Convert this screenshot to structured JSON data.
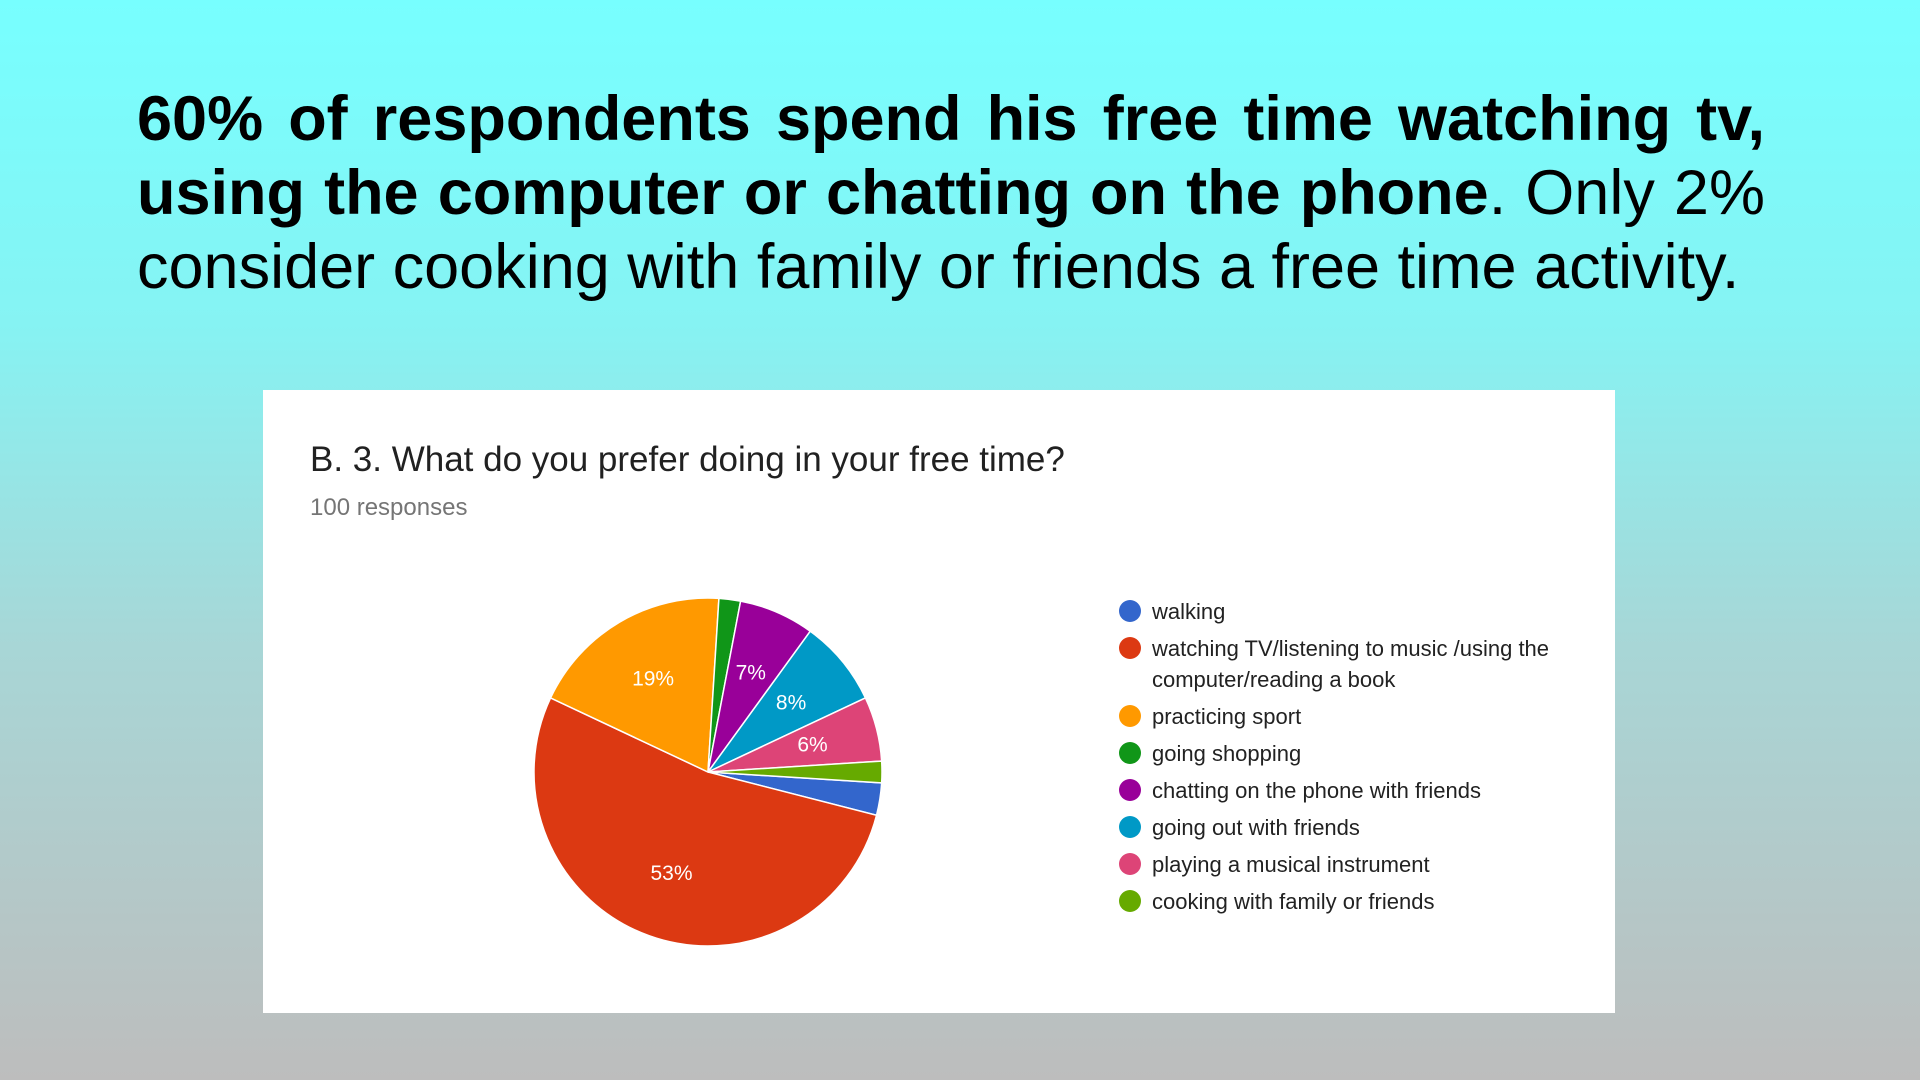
{
  "headline": {
    "bold_text": "60% of respondents spend his free time watching tv, using the computer or chatting on the phone",
    "rest_text": ". Only 2% consider cooking with family or friends a free time activity."
  },
  "chart_data": {
    "type": "pie",
    "title": "B. 3. What do you prefer doing in your free time?",
    "subtitle": "100 responses",
    "legend_position": "right",
    "slices": [
      {
        "name": "walking",
        "value": 3,
        "label": "",
        "color": "#3366cc"
      },
      {
        "name": "watching TV/listening to music /using the computer/reading a book",
        "value": 53,
        "label": "53%",
        "color": "#dc3912"
      },
      {
        "name": "practicing sport",
        "value": 19,
        "label": "19%",
        "color": "#ff9900"
      },
      {
        "name": "going shopping",
        "value": 2,
        "label": "",
        "color": "#109618"
      },
      {
        "name": "chatting on the phone with friends",
        "value": 7,
        "label": "7%",
        "color": "#990099"
      },
      {
        "name": "going out with friends",
        "value": 8,
        "label": "8%",
        "color": "#0099c6"
      },
      {
        "name": "playing a musical instrument",
        "value": 6,
        "label": "6%",
        "color": "#dd4477"
      },
      {
        "name": "cooking with family or friends",
        "value": 2,
        "label": "",
        "color": "#66aa00"
      }
    ],
    "draw_order": [
      0,
      1,
      2,
      3,
      4,
      5,
      6,
      7
    ]
  }
}
